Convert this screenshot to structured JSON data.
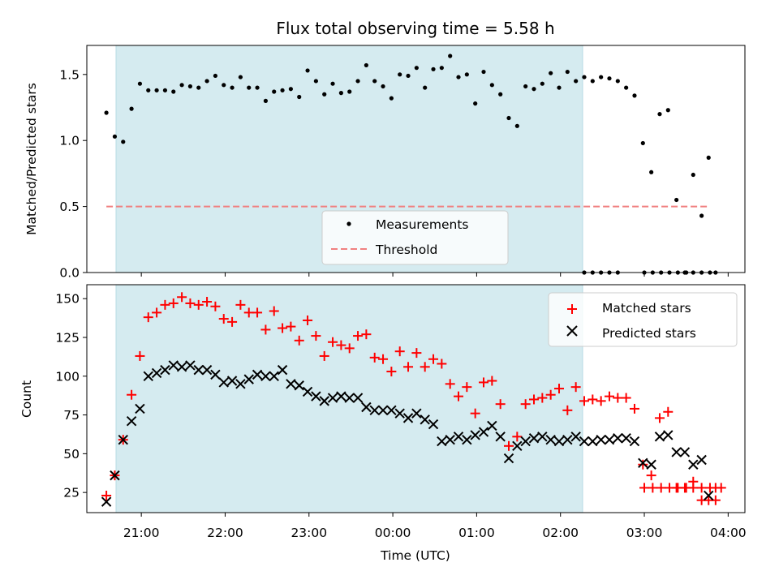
{
  "chart_data": [
    {
      "type": "scatter",
      "title": "Flux total observing time = 5.58 h",
      "xlabel": "",
      "ylabel": "Matched/Predicted stars",
      "ylim": [
        0,
        1.72
      ],
      "yticks": [
        "0.0",
        "0.5",
        "1.0",
        "1.5"
      ],
      "shaded_span": [
        "20:35",
        "02:10"
      ],
      "shaded_color": "#d5ebf0",
      "threshold": 0.5,
      "legend_position": "lower center",
      "series": [
        {
          "name": "Measurements",
          "marker": "dot",
          "color": "#000000",
          "x": [
            "20:35",
            "20:41",
            "20:47",
            "20:53",
            "20:59",
            "21:05",
            "21:11",
            "21:17",
            "21:23",
            "21:29",
            "21:35",
            "21:41",
            "21:47",
            "21:53",
            "21:59",
            "22:05",
            "22:11",
            "22:17",
            "22:23",
            "22:29",
            "22:35",
            "22:41",
            "22:47",
            "22:53",
            "22:59",
            "23:05",
            "23:11",
            "23:17",
            "23:23",
            "23:29",
            "23:35",
            "23:41",
            "23:47",
            "23:53",
            "23:59",
            "00:05",
            "00:11",
            "00:17",
            "00:23",
            "00:29",
            "00:35",
            "00:41",
            "00:47",
            "00:53",
            "00:59",
            "01:05",
            "01:11",
            "01:17",
            "01:23",
            "01:29",
            "01:35",
            "01:41",
            "01:47",
            "01:53",
            "01:59",
            "02:05",
            "02:11",
            "02:17",
            "02:23",
            "02:29",
            "02:35",
            "02:41",
            "02:47",
            "02:53",
            "02:59",
            "03:05",
            "03:11",
            "03:17",
            "03:23",
            "03:29",
            "03:35",
            "03:41",
            "03:47"
          ],
          "y": [
            1.21,
            1.03,
            0.99,
            1.24,
            1.43,
            1.38,
            1.38,
            1.38,
            1.37,
            1.42,
            1.41,
            1.4,
            1.45,
            1.49,
            1.42,
            1.4,
            1.48,
            1.4,
            1.4,
            1.3,
            1.37,
            1.38,
            1.39,
            1.33,
            1.53,
            1.45,
            1.35,
            1.43,
            1.36,
            1.37,
            1.45,
            1.57,
            1.45,
            1.41,
            1.32,
            1.5,
            1.49,
            1.55,
            1.4,
            1.54,
            1.55,
            1.64,
            1.48,
            1.5,
            1.28,
            1.52,
            1.42,
            1.35,
            1.17,
            1.11,
            1.41,
            1.39,
            1.43,
            1.51,
            1.4,
            1.52,
            1.45,
            1.48,
            1.45,
            1.48,
            1.47,
            1.45,
            1.4,
            1.34,
            0.98,
            0.76,
            1.2,
            1.23,
            0.55,
            0.0,
            0.0,
            0.0,
            0.0
          ]
        },
        {
          "name": "Threshold",
          "style": "dashed",
          "color": "#f08080",
          "x": [
            "20:35",
            "03:45"
          ],
          "y": [
            0.5,
            0.5
          ]
        }
      ],
      "extra_points": {
        "x": [
          "02:17",
          "02:23",
          "02:29",
          "02:35",
          "02:41",
          "03:00",
          "03:06",
          "03:12",
          "03:18",
          "03:24",
          "03:30",
          "03:35",
          "03:41",
          "03:46",
          "03:51"
        ],
        "y": [
          0.0,
          0.0,
          0.0,
          0.0,
          0.0,
          0.0,
          0.0,
          0.0,
          0.0,
          0.0,
          0.0,
          0.74,
          0.43,
          0.87,
          0.0
        ]
      }
    },
    {
      "type": "scatter",
      "title": "",
      "xlabel": "Time (UTC)",
      "ylabel": "Count",
      "ylim": [
        12,
        159
      ],
      "yticks": [
        "25",
        "50",
        "75",
        "100",
        "125",
        "150"
      ],
      "xticks": [
        "21:00",
        "22:00",
        "23:00",
        "00:00",
        "01:00",
        "02:00",
        "03:00",
        "04:00"
      ],
      "shaded_span": [
        "20:35",
        "02:10"
      ],
      "legend_position": "upper right",
      "series": [
        {
          "name": "Matched stars",
          "marker": "plus",
          "color": "#ff0000",
          "x": [
            "20:35",
            "20:41",
            "20:47",
            "20:53",
            "20:59",
            "21:05",
            "21:11",
            "21:17",
            "21:23",
            "21:29",
            "21:35",
            "21:41",
            "21:47",
            "21:53",
            "21:59",
            "22:05",
            "22:11",
            "22:17",
            "22:23",
            "22:29",
            "22:35",
            "22:41",
            "22:47",
            "22:53",
            "22:59",
            "23:05",
            "23:11",
            "23:17",
            "23:23",
            "23:29",
            "23:35",
            "23:41",
            "23:47",
            "23:53",
            "23:59",
            "00:05",
            "00:11",
            "00:17",
            "00:23",
            "00:29",
            "00:35",
            "00:41",
            "00:47",
            "00:53",
            "00:59",
            "01:05",
            "01:11",
            "01:17",
            "01:23",
            "01:29",
            "01:35",
            "01:41",
            "01:47",
            "01:53",
            "01:59",
            "02:05",
            "02:11",
            "02:17",
            "02:23",
            "02:29",
            "02:35",
            "02:41",
            "02:47",
            "02:53",
            "02:59",
            "03:05",
            "03:11",
            "03:17",
            "03:23",
            "03:29",
            "03:35",
            "03:41",
            "03:47",
            "03:51",
            "03:55"
          ],
          "y": [
            23,
            36,
            59,
            88,
            113,
            138,
            141,
            146,
            147,
            151,
            147,
            146,
            148,
            145,
            137,
            135,
            146,
            141,
            141,
            130,
            142,
            131,
            132,
            123,
            136,
            126,
            113,
            122,
            120,
            118,
            126,
            127,
            112,
            111,
            103,
            116,
            106,
            115,
            106,
            111,
            108,
            95,
            87,
            93,
            76,
            96,
            97,
            82,
            55,
            61,
            82,
            85,
            86,
            88,
            92,
            78,
            93,
            84,
            85,
            84,
            87,
            86,
            86,
            79,
            43,
            36,
            73,
            77,
            28,
            28,
            28,
            28,
            28,
            28,
            28
          ],
          "extra": {
            "x": [
              "03:00",
              "03:06",
              "03:12",
              "03:18",
              "03:24",
              "03:30",
              "03:35",
              "03:41",
              "03:46",
              "03:51"
            ],
            "y": [
              28,
              28,
              28,
              28,
              28,
              28,
              32,
              20,
              20,
              20
            ]
          }
        },
        {
          "name": "Predicted stars",
          "marker": "x",
          "color": "#000000",
          "x": [
            "20:35",
            "20:41",
            "20:47",
            "20:53",
            "20:59",
            "21:05",
            "21:11",
            "21:17",
            "21:23",
            "21:29",
            "21:35",
            "21:41",
            "21:47",
            "21:53",
            "21:59",
            "22:05",
            "22:11",
            "22:17",
            "22:23",
            "22:29",
            "22:35",
            "22:41",
            "22:47",
            "22:53",
            "22:59",
            "23:05",
            "23:11",
            "23:17",
            "23:23",
            "23:29",
            "23:35",
            "23:41",
            "23:47",
            "23:53",
            "23:59",
            "00:05",
            "00:11",
            "00:17",
            "00:23",
            "00:29",
            "00:35",
            "00:41",
            "00:47",
            "00:53",
            "00:59",
            "01:05",
            "01:11",
            "01:17",
            "01:23",
            "01:29",
            "01:35",
            "01:41",
            "01:47",
            "01:53",
            "01:59",
            "02:05",
            "02:11",
            "02:17",
            "02:23",
            "02:29",
            "02:35",
            "02:41",
            "02:47",
            "02:53",
            "02:59",
            "03:05",
            "03:11",
            "03:17",
            "03:23",
            "03:29"
          ],
          "y": [
            19,
            36,
            59,
            71,
            79,
            100,
            102,
            104,
            107,
            106,
            107,
            104,
            104,
            101,
            96,
            97,
            95,
            98,
            101,
            100,
            100,
            104,
            95,
            94,
            90,
            87,
            84,
            86,
            87,
            86,
            86,
            80,
            78,
            78,
            78,
            76,
            73,
            76,
            72,
            69,
            58,
            59,
            61,
            59,
            62,
            64,
            68,
            61,
            47,
            55,
            58,
            60,
            61,
            59,
            58,
            59,
            61,
            58,
            58,
            59,
            59,
            60,
            60,
            58,
            44,
            43,
            61,
            62,
            51,
            51
          ],
          "extra": {
            "x": [
              "03:35",
              "03:41",
              "03:46"
            ],
            "y": [
              43,
              46,
              23
            ]
          }
        }
      ]
    }
  ]
}
